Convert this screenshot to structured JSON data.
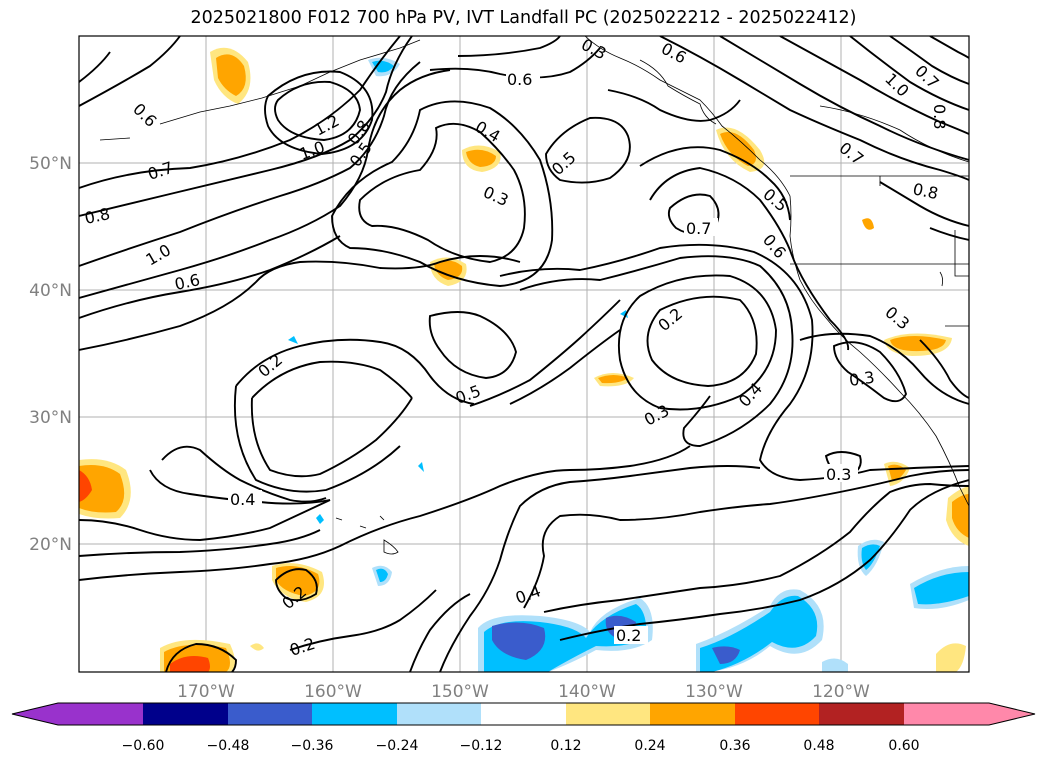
{
  "title": "2025021800 F012 700 hPa PV, IVT Landfall PC (2025022212 - 2025022412)",
  "map": {
    "lon_ticks": [
      "170°W",
      "160°W",
      "150°W",
      "140°W",
      "130°W",
      "120°W"
    ],
    "lat_ticks": [
      "50°N",
      "40°N",
      "30°N",
      "20°N"
    ],
    "contour_labels": [
      "0.6",
      "0.6",
      "0.6",
      "0.7",
      "0.8",
      "1.0",
      "0.6",
      "1.2",
      "1.0",
      "0.8",
      "0.5",
      "0.4",
      "0.3",
      "0.5",
      "0.7",
      "0.6",
      "0.5",
      "0.8",
      "1.0",
      "0.7",
      "0.8",
      "0.3",
      "0.2",
      "0.2",
      "0.5",
      "0.4",
      "0.3",
      "0.4",
      "0.3",
      "0.2",
      "0.4",
      "0.2",
      "0.2",
      "0.3",
      "0.7",
      "0.3"
    ]
  },
  "colorbar": {
    "colors": [
      "#9932cc",
      "#00008b",
      "#3a5ccc",
      "#00bfff",
      "#b0e0fa",
      "#ffffff",
      "#ffe680",
      "#ffa500",
      "#ff4500",
      "#b22222",
      "#ff88aa"
    ],
    "tick_labels": [
      "−0.60",
      "−0.48",
      "−0.36",
      "−0.24",
      "−0.12",
      "0.12",
      "0.24",
      "0.36",
      "0.48",
      "0.60"
    ]
  }
}
